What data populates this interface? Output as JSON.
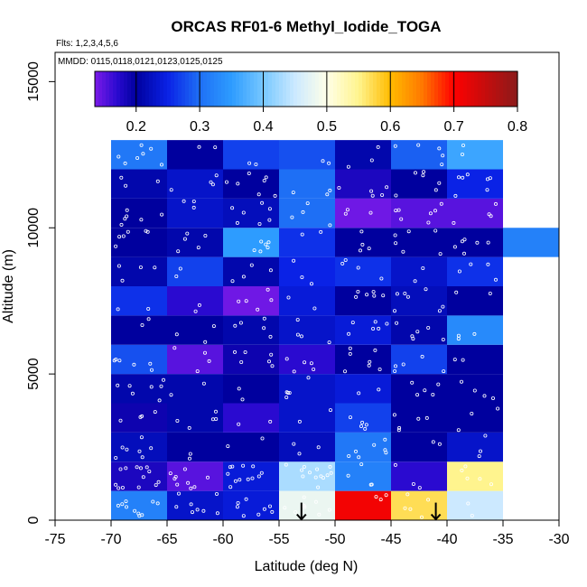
{
  "chart_data": {
    "type": "heatmap",
    "title": "ORCAS RF01-6 Methyl_Iodide_TOGA",
    "flights_label": "Flts: 1,2,3,4,5,6",
    "dates_label": "MMDD: 0115,0118,0121,0123,0125,0125",
    "xlabel": "Latitude (deg N)",
    "ylabel": "Altitude (m)",
    "xlim": [
      -75,
      -30
    ],
    "ylim": [
      0,
      16000
    ],
    "x_ticks": [
      "-75",
      "-70",
      "-65",
      "-60",
      "-55",
      "-50",
      "-45",
      "-40",
      "-35",
      "-30"
    ],
    "y_ticks": [
      "0",
      "5000",
      "10000",
      "15000"
    ],
    "colorbar": {
      "range": [
        0.135,
        0.8
      ],
      "tick_labels": [
        "0.2",
        "0.3",
        "0.4",
        "0.5",
        "0.6",
        "0.7",
        "0.8"
      ],
      "tick_values": [
        0.2,
        0.3,
        0.4,
        0.5,
        0.6,
        0.7,
        0.8
      ],
      "stops": [
        {
          "value": 0.135,
          "color": "#7a1ae8"
        },
        {
          "value": 0.17,
          "color": "#2a0ad0"
        },
        {
          "value": 0.2,
          "color": "#00009e"
        },
        {
          "value": 0.25,
          "color": "#0a22e6"
        },
        {
          "value": 0.3,
          "color": "#1e6ff5"
        },
        {
          "value": 0.35,
          "color": "#2d9cff"
        },
        {
          "value": 0.4,
          "color": "#77c8ff"
        },
        {
          "value": 0.45,
          "color": "#cce9ff"
        },
        {
          "value": 0.5,
          "color": "#ffffe8"
        },
        {
          "value": 0.55,
          "color": "#fff48e"
        },
        {
          "value": 0.6,
          "color": "#ffbb00"
        },
        {
          "value": 0.65,
          "color": "#ff7800"
        },
        {
          "value": 0.7,
          "color": "#ff0000"
        },
        {
          "value": 0.8,
          "color": "#8b1a1a"
        }
      ]
    },
    "lat_bins": [
      -70,
      -65,
      -60,
      -55,
      -50,
      -45,
      -40,
      -35
    ],
    "alt_bin_size": 1000,
    "grid_values": [
      [
        0.32,
        0.23,
        0.24,
        0.48,
        0.71,
        0.57,
        0.45
      ],
      [
        0.18,
        0.15,
        0.24,
        0.43,
        0.32,
        0.17,
        0.55
      ],
      [
        0.22,
        0.2,
        0.2,
        0.22,
        0.31,
        0.2,
        0.23
      ],
      [
        0.19,
        0.21,
        0.17,
        0.23,
        0.27,
        0.2,
        0.2
      ],
      [
        0.21,
        0.21,
        0.2,
        0.23,
        0.24,
        0.2,
        0.2
      ],
      [
        0.28,
        0.15,
        0.19,
        0.17,
        0.2,
        0.27,
        0.2
      ],
      [
        0.2,
        0.2,
        0.21,
        0.23,
        0.24,
        0.21,
        0.33
      ],
      [
        0.26,
        0.17,
        0.14,
        0.24,
        0.2,
        0.22,
        0.2
      ],
      [
        0.21,
        0.27,
        0.21,
        0.25,
        0.26,
        0.23,
        0.26
      ],
      [
        0.2,
        0.21,
        0.35,
        0.26,
        0.2,
        0.2,
        0.2
      ],
      [
        0.2,
        0.23,
        0.22,
        0.3,
        0.14,
        0.15,
        0.15
      ],
      [
        0.21,
        0.23,
        0.2,
        0.3,
        0.18,
        0.2,
        0.25
      ],
      [
        0.31,
        0.2,
        0.27,
        0.28,
        0.21,
        0.29,
        0.36
      ]
    ],
    "extra_cells": [
      {
        "lat": -35,
        "alt": 9000,
        "value": 0.32
      }
    ],
    "arrows_at_latitude": [
      -53,
      -41
    ]
  }
}
